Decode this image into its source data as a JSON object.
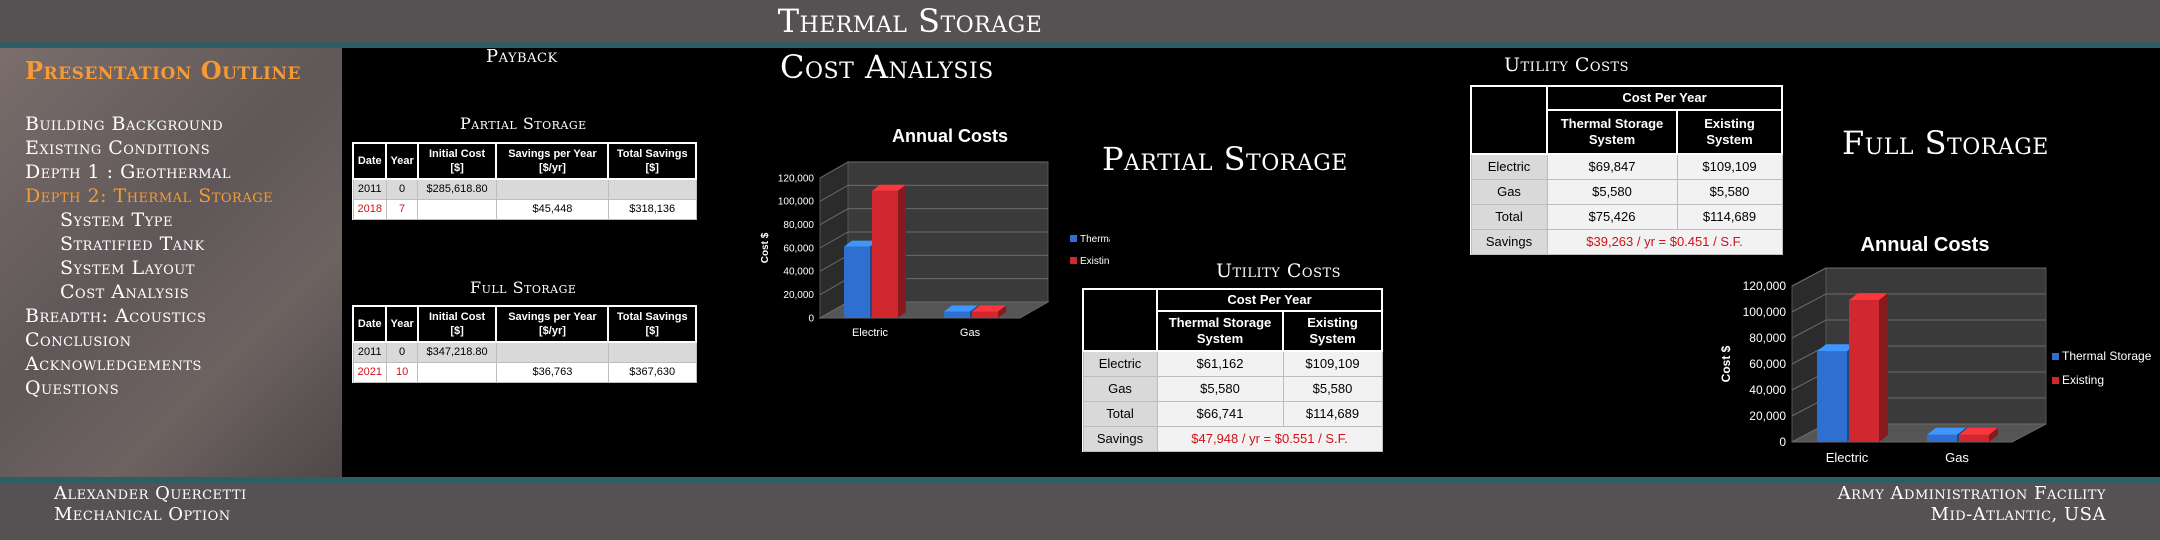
{
  "header": {
    "title": "Thermal Storage"
  },
  "sidebar": {
    "title": "Presentation Outline",
    "items": [
      {
        "label": "Building Background"
      },
      {
        "label": "Existing Conditions"
      },
      {
        "label": "Depth 1 : Geothermal"
      },
      {
        "label": "Depth 2: Thermal Storage"
      },
      {
        "label": "System Type"
      },
      {
        "label": "Stratified Tank"
      },
      {
        "label": "System Layout"
      },
      {
        "label": "Cost Analysis"
      },
      {
        "label": "Breadth: Acoustics"
      },
      {
        "label": "Conclusion"
      },
      {
        "label": "Acknowledgements"
      },
      {
        "label": "Questions"
      }
    ]
  },
  "payback": {
    "title": "Payback",
    "headers": [
      "Date",
      "Year",
      "Initial Cost [$]",
      "Savings per Year [$/yr]",
      "Total Savings [$]"
    ],
    "partial": {
      "title": "Partial Storage",
      "rows": [
        [
          "2011",
          "0",
          "$285,618.80",
          "",
          ""
        ],
        [
          "2018",
          "7",
          "",
          "$45,448",
          "$318,136"
        ]
      ]
    },
    "full": {
      "title": "Full Storage",
      "rows": [
        [
          "2011",
          "0",
          "$347,218.80",
          "",
          ""
        ],
        [
          "2021",
          "10",
          "",
          "$36,763",
          "$367,630"
        ]
      ]
    }
  },
  "cost_analysis": {
    "title": "Cost Analysis"
  },
  "partial_storage": {
    "label": "Partial Storage",
    "utility_title": "Utility Costs",
    "table": {
      "group_header": "Cost Per Year",
      "col1": "Thermal Storage System",
      "col2": "Existing System",
      "rows": [
        {
          "label": "Electric",
          "ts": "$61,162",
          "ex": "$109,109"
        },
        {
          "label": "Gas",
          "ts": "$5,580",
          "ex": "$5,580"
        },
        {
          "label": "Total",
          "ts": "$66,741",
          "ex": "$114,689"
        }
      ],
      "savings_label": "Savings",
      "savings_value": "$47,948 / yr = $0.551 / S.F."
    }
  },
  "full_storage": {
    "label": "Full Storage",
    "utility_title": "Utility Costs",
    "table": {
      "group_header": "Cost Per Year",
      "col1": "Thermal Storage System",
      "col2": "Existing System",
      "rows": [
        {
          "label": "Electric",
          "ts": "$69,847",
          "ex": "$109,109"
        },
        {
          "label": "Gas",
          "ts": "$5,580",
          "ex": "$5,580"
        },
        {
          "label": "Total",
          "ts": "$75,426",
          "ex": "$114,689"
        }
      ],
      "savings_label": "Savings",
      "savings_value": "$39,263 / yr = $0.451 / S.F."
    }
  },
  "chart_data": [
    {
      "type": "bar",
      "title": "Annual Costs",
      "ylabel": "Cost $",
      "xlabel": "",
      "categories": [
        "Electric",
        "Gas"
      ],
      "ylim": [
        0,
        120000
      ],
      "yticks": [
        "0",
        "20,000",
        "40,000",
        "60,000",
        "80,000",
        "100,000",
        "120,000"
      ],
      "legend_position": "right",
      "series": [
        {
          "name": "Thermal Storage",
          "color": "#2f6fd0",
          "values": [
            61162,
            5580
          ]
        },
        {
          "name": "Existing",
          "color": "#d0282e",
          "values": [
            109109,
            5580
          ]
        }
      ]
    },
    {
      "type": "bar",
      "title": "Annual Costs",
      "ylabel": "Cost $",
      "xlabel": "",
      "categories": [
        "Electric",
        "Gas"
      ],
      "ylim": [
        0,
        120000
      ],
      "yticks": [
        "0",
        "20,000",
        "40,000",
        "60,000",
        "80,000",
        "100,000",
        "120,000"
      ],
      "legend_position": "right",
      "series": [
        {
          "name": "Thermal Storage",
          "color": "#2f6fd0",
          "values": [
            69847,
            5580
          ]
        },
        {
          "name": "Existing",
          "color": "#d0282e",
          "values": [
            109109,
            5580
          ]
        }
      ]
    }
  ],
  "footer": {
    "author": "Alexander Quercetti",
    "option": "Mechanical Option",
    "facility": "Army Administration Facility",
    "location": "Mid-Atlantic, USA"
  }
}
